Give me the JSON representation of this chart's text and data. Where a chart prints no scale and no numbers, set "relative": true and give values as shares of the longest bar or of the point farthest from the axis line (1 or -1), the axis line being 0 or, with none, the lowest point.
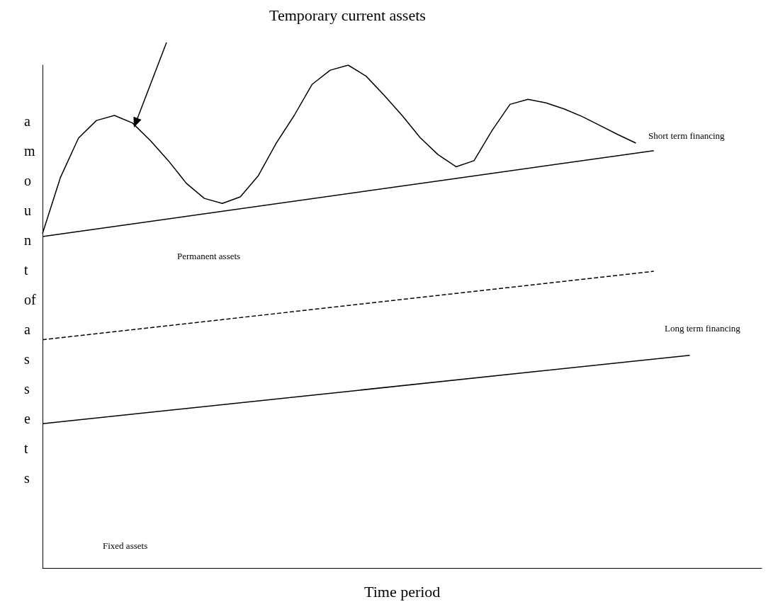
{
  "chart_data": {
    "type": "line",
    "relative": true,
    "xlabel": "Time period",
    "ylabel": "amount of assets",
    "grid": false,
    "marker": "none",
    "categories": [
      null,
      null,
      null,
      null,
      null,
      null,
      null,
      null,
      null,
      null,
      null,
      null,
      null,
      null,
      null,
      null,
      null,
      null,
      null,
      null,
      null,
      null,
      null,
      null,
      null,
      null,
      null,
      null,
      null,
      null,
      null,
      null,
      null,
      null,
      null,
      null,
      null,
      null,
      null,
      null,
      null
    ],
    "annotations": [
      "Temporary current assets",
      "Short term financing",
      "Permanent assets",
      "Long term financing",
      "Fixed assets"
    ],
    "series": [
      {
        "color": "#000000",
        "values": [
          0.665,
          0.777,
          0.855,
          0.89,
          0.9,
          0.885,
          0.85,
          0.81,
          0.765,
          0.735,
          0.725,
          0.738,
          0.78,
          0.845,
          0.9,
          0.962,
          0.99,
          1,
          0.978,
          0.94,
          0.9,
          0.856,
          0.822,
          0.798,
          0.81,
          0.87,
          0.922,
          0.932,
          0.925,
          0.913,
          0.898,
          0.88,
          0.862,
          0.845,
          null,
          null,
          null,
          null,
          null,
          null,
          null
        ],
        "line_style": "solid"
      },
      {
        "color": "#000000",
        "values": [
          0.659,
          null,
          null,
          null,
          null,
          null,
          null,
          null,
          null,
          null,
          null,
          null,
          null,
          null,
          null,
          null,
          null,
          null,
          null,
          null,
          null,
          null,
          null,
          null,
          null,
          null,
          null,
          null,
          null,
          null,
          null,
          null,
          null,
          null,
          0.83,
          null,
          null,
          null,
          null,
          null,
          null
        ],
        "line_style": "solid"
      },
      {
        "color": "#000000",
        "values": [
          0.454,
          null,
          null,
          null,
          null,
          null,
          null,
          null,
          null,
          null,
          null,
          null,
          null,
          null,
          null,
          null,
          null,
          null,
          null,
          null,
          null,
          null,
          null,
          null,
          null,
          null,
          null,
          null,
          null,
          null,
          null,
          null,
          null,
          null,
          0.59,
          null,
          null,
          null,
          null,
          null,
          null
        ],
        "line_style": "dashed"
      },
      {
        "color": "#000000",
        "values": [
          0.287,
          null,
          null,
          null,
          null,
          null,
          null,
          null,
          null,
          null,
          null,
          null,
          null,
          null,
          null,
          null,
          null,
          null,
          null,
          null,
          null,
          null,
          null,
          null,
          null,
          null,
          null,
          null,
          null,
          null,
          null,
          null,
          null,
          null,
          null,
          null,
          0.423,
          null,
          null,
          null,
          null
        ],
        "line_style": "solid"
      }
    ]
  }
}
